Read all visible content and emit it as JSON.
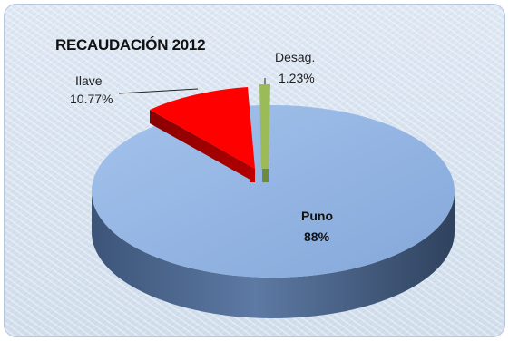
{
  "chart_data": {
    "type": "pie",
    "title": "RECAUDACIÓN 2012",
    "slices": [
      {
        "name": "Puno",
        "value": 88,
        "label": "88%",
        "color": "#8db0e0"
      },
      {
        "name": "Ilave",
        "value": 10.77,
        "label": "10.77%",
        "color": "#ff0000"
      },
      {
        "name": "Desag.",
        "value": 1.23,
        "label": "1.23%",
        "color": "#9bbb59"
      }
    ]
  }
}
